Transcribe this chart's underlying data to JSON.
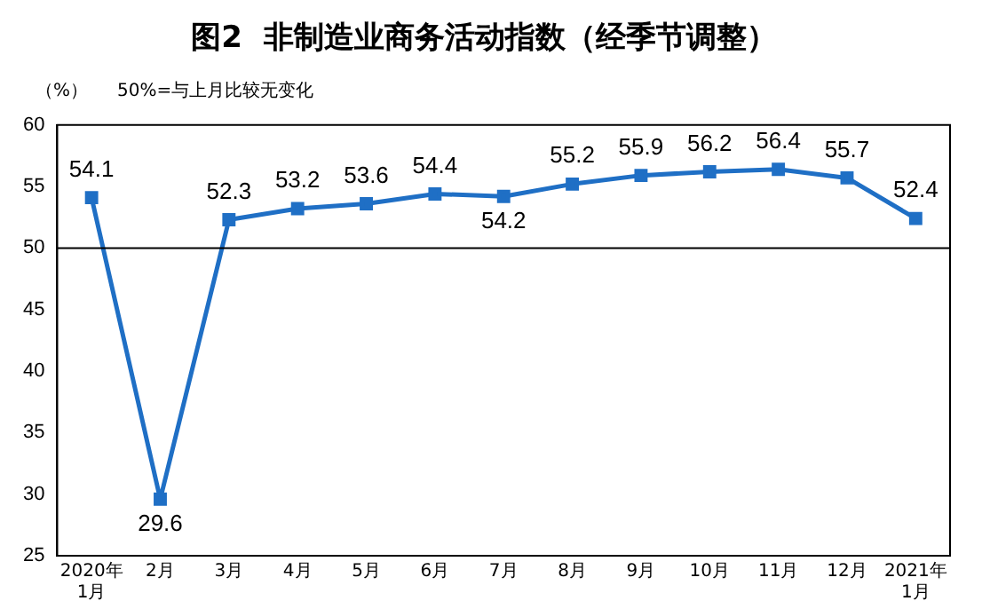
{
  "chart_data": {
    "type": "line",
    "title": "图2  非制造业商务活动指数（经季节调整）",
    "ylabel": "（%）",
    "annotations": [
      "50%=与上月比较无变化"
    ],
    "categories": [
      "2020年\n1月",
      "2月",
      "3月",
      "4月",
      "5月",
      "6月",
      "7月",
      "8月",
      "9月",
      "10月",
      "11月",
      "12月",
      "2021年\n1月"
    ],
    "series": [
      {
        "color": "#1f6fc5",
        "values": [
          54.1,
          29.6,
          52.3,
          53.2,
          53.6,
          54.4,
          54.2,
          55.2,
          55.9,
          56.2,
          56.4,
          55.7,
          52.4
        ]
      }
    ],
    "ylim": [
      25,
      60
    ],
    "yticks": [
      25,
      30,
      35,
      40,
      45,
      50,
      55,
      60
    ],
    "ref_lines": [
      {
        "axis": "y",
        "value": 50,
        "color": "#000000"
      }
    ],
    "data_labels": true,
    "marker": "square",
    "line_style": "solid",
    "grid": false,
    "legend": false
  }
}
